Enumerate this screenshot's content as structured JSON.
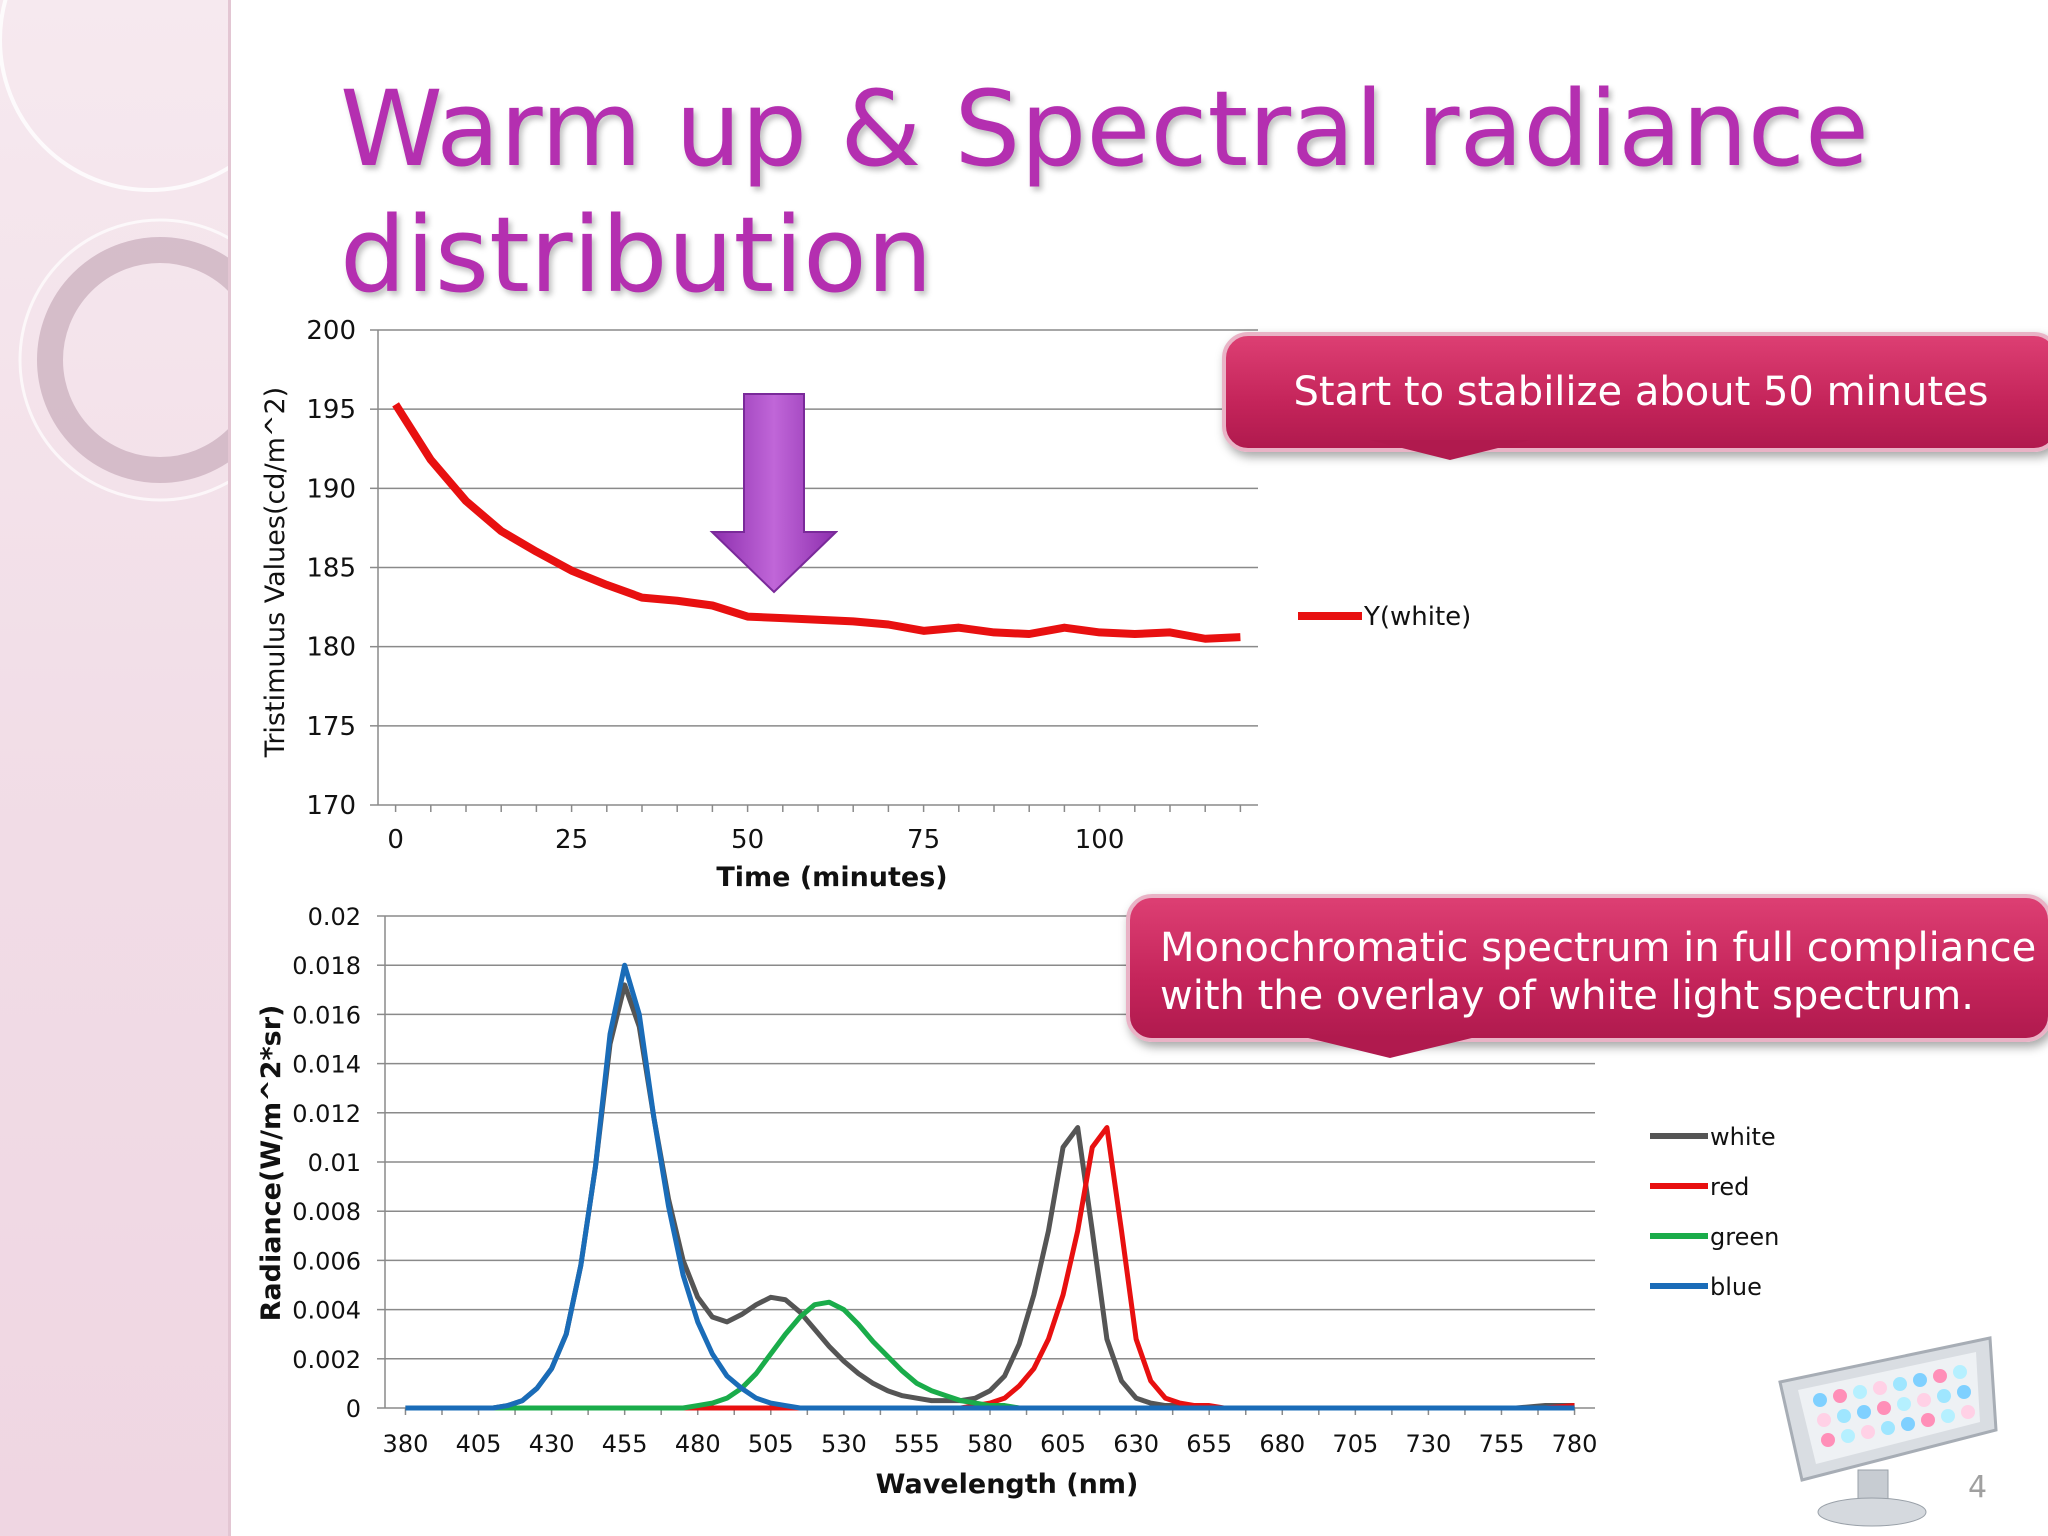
{
  "slide": {
    "title": "Warm up & Spectral radiance distribution",
    "page_number": "4",
    "callout_1": "Start to stabilize about 50 minutes",
    "callout_2": "Monochromatic spectrum in full compliance with the overlay of white light spectrum."
  },
  "colors": {
    "title": "#b42fb0",
    "callout": "#c4245a",
    "arrow": "#a84bc8"
  },
  "chart_data": [
    {
      "type": "line",
      "title": "",
      "xlabel": "Time (minutes)",
      "ylabel": "Tristimulus  Values(cd/m^2)",
      "xlim": [
        0,
        120
      ],
      "ylim": [
        170,
        200
      ],
      "xticks": [
        0,
        25,
        50,
        75,
        100
      ],
      "yticks": [
        170,
        175,
        180,
        185,
        190,
        195,
        200
      ],
      "grid": "horizontal",
      "legend": "right",
      "series": [
        {
          "name": "Y(white)",
          "color": "#e81010",
          "x": [
            0,
            5,
            10,
            15,
            20,
            25,
            30,
            35,
            40,
            45,
            50,
            55,
            60,
            65,
            70,
            75,
            80,
            85,
            90,
            95,
            100,
            105,
            110,
            115,
            120
          ],
          "y": [
            195.3,
            191.8,
            189.2,
            187.3,
            186.0,
            184.8,
            183.9,
            183.1,
            182.9,
            182.6,
            181.9,
            181.8,
            181.7,
            181.6,
            181.4,
            181.0,
            181.2,
            180.9,
            180.8,
            181.2,
            180.9,
            180.8,
            180.9,
            180.5,
            180.6
          ]
        }
      ]
    },
    {
      "type": "line",
      "title": "",
      "xlabel": "Wavelength (nm)",
      "ylabel": "Radiance(W/m^2*sr)",
      "xlim": [
        380,
        780
      ],
      "ylim": [
        0,
        0.02
      ],
      "xticks": [
        380,
        405,
        430,
        455,
        480,
        505,
        530,
        555,
        580,
        605,
        630,
        655,
        680,
        705,
        730,
        755,
        780
      ],
      "yticks": [
        "0",
        "0.002",
        "0.004",
        "0.006",
        "0.008",
        "0.01",
        "0.012",
        "0.014",
        "0.016",
        "0.018",
        "0.02"
      ],
      "grid": "horizontal",
      "legend": "right",
      "x": [
        380,
        385,
        390,
        395,
        400,
        405,
        410,
        415,
        420,
        425,
        430,
        435,
        440,
        445,
        450,
        455,
        460,
        465,
        470,
        475,
        480,
        485,
        490,
        495,
        500,
        505,
        510,
        515,
        520,
        525,
        530,
        535,
        540,
        545,
        550,
        555,
        560,
        565,
        570,
        575,
        580,
        585,
        590,
        595,
        600,
        605,
        610,
        615,
        620,
        625,
        630,
        635,
        640,
        645,
        650,
        655,
        660,
        665,
        670,
        675,
        680,
        690,
        700,
        710,
        720,
        730,
        740,
        750,
        760,
        770,
        780
      ],
      "series": [
        {
          "name": "white",
          "color": "#555555",
          "values": [
            0,
            0,
            0,
            0,
            0,
            0,
            0,
            0.0001,
            0.0003,
            0.0008,
            0.0016,
            0.003,
            0.0058,
            0.0098,
            0.0148,
            0.0172,
            0.0155,
            0.0118,
            0.0085,
            0.006,
            0.0045,
            0.0037,
            0.0035,
            0.0038,
            0.0042,
            0.0045,
            0.0044,
            0.0039,
            0.0032,
            0.0025,
            0.0019,
            0.0014,
            0.001,
            0.0007,
            0.0005,
            0.0004,
            0.0003,
            0.0003,
            0.0003,
            0.0004,
            0.0007,
            0.0013,
            0.0026,
            0.0046,
            0.0072,
            0.0106,
            0.0114,
            0.0072,
            0.0028,
            0.0011,
            0.0004,
            0.0002,
            0.0001,
            0.0001,
            0.0001,
            0,
            0,
            0,
            0,
            0,
            0,
            0,
            0,
            0,
            0,
            0,
            0,
            0,
            0,
            0.0001,
            0.0001
          ]
        },
        {
          "name": "red",
          "color": "#e81010",
          "values": [
            0,
            0,
            0,
            0,
            0,
            0,
            0,
            0,
            0,
            0,
            0,
            0,
            0,
            0,
            0,
            0,
            0,
            0,
            0,
            0,
            0,
            0,
            0,
            0,
            0,
            0,
            0,
            0,
            0,
            0,
            0,
            0,
            0,
            0,
            0,
            0,
            0,
            0,
            0,
            0.0001,
            0.0002,
            0.0004,
            0.0009,
            0.0016,
            0.0028,
            0.0046,
            0.0072,
            0.0106,
            0.0114,
            0.0072,
            0.0028,
            0.0011,
            0.0004,
            0.0002,
            0.0001,
            0.0001,
            0,
            0,
            0,
            0,
            0,
            0,
            0,
            0,
            0,
            0,
            0,
            0,
            0,
            0,
            0.0001
          ]
        },
        {
          "name": "green",
          "color": "#1aac4a",
          "values": [
            0,
            0,
            0,
            0,
            0,
            0,
            0,
            0,
            0,
            0,
            0,
            0,
            0,
            0,
            0,
            0,
            0,
            0,
            0,
            0,
            0.0001,
            0.0002,
            0.0004,
            0.0008,
            0.0014,
            0.0022,
            0.003,
            0.0037,
            0.0042,
            0.0043,
            0.004,
            0.0034,
            0.0027,
            0.0021,
            0.0015,
            0.001,
            0.0007,
            0.0005,
            0.0003,
            0.0002,
            0.0001,
            0.0001,
            0,
            0,
            0,
            0,
            0,
            0,
            0,
            0,
            0,
            0,
            0,
            0,
            0,
            0,
            0,
            0,
            0,
            0,
            0,
            0,
            0,
            0,
            0,
            0,
            0,
            0,
            0,
            0,
            0
          ]
        },
        {
          "name": "blue",
          "color": "#1a6cb8",
          "values": [
            0,
            0,
            0,
            0,
            0,
            0,
            0,
            0.0001,
            0.0003,
            0.0008,
            0.0016,
            0.003,
            0.0058,
            0.0098,
            0.0152,
            0.018,
            0.016,
            0.0118,
            0.0082,
            0.0054,
            0.0035,
            0.0022,
            0.0013,
            0.0008,
            0.0004,
            0.0002,
            0.0001,
            0,
            0,
            0,
            0,
            0,
            0,
            0,
            0,
            0,
            0,
            0,
            0,
            0,
            0,
            0,
            0,
            0,
            0,
            0,
            0,
            0,
            0,
            0,
            0,
            0,
            0,
            0,
            0,
            0,
            0,
            0,
            0,
            0,
            0,
            0,
            0,
            0,
            0,
            0,
            0,
            0,
            0,
            0,
            0
          ]
        }
      ]
    }
  ]
}
